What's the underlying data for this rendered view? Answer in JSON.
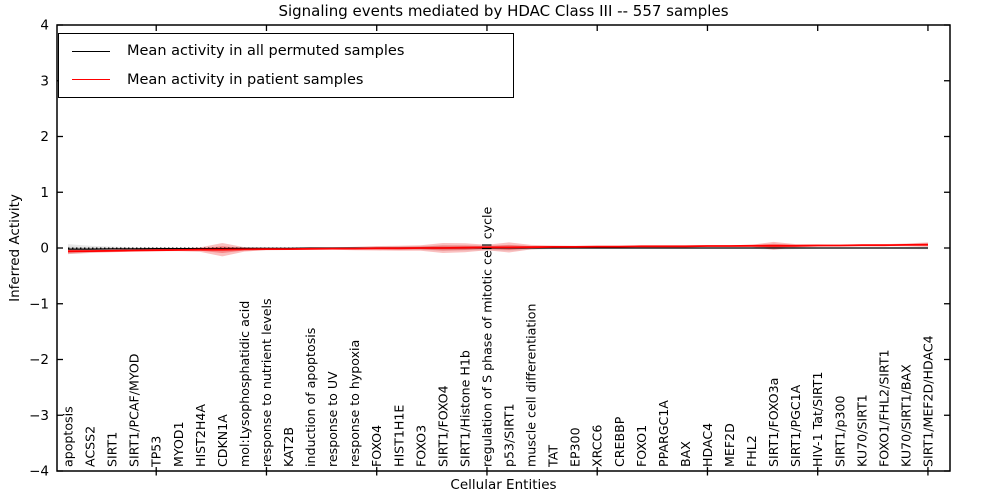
{
  "chart_data": {
    "type": "line",
    "title": "Signaling events mediated by HDAC Class III -- 557 samples",
    "xlabel": "Cellular Entities",
    "ylabel": "Inferred Activity",
    "ylim": [
      -4,
      4
    ],
    "yticks": [
      -4,
      -3,
      -2,
      -1,
      0,
      1,
      2,
      3,
      4
    ],
    "xticks_every": 5,
    "grid": false,
    "legend_position": "upper left",
    "categories": [
      "apoptosis",
      "ACSS2",
      "SIRT1",
      "SIRT1/PCAF/MYOD",
      "TP53",
      "MYOD1",
      "HIST2H4A",
      "CDKN1A",
      "mol:Lysophosphatidic acid",
      "response to nutrient levels",
      "KAT2B",
      "induction of apoptosis",
      "response to UV",
      "response to hypoxia",
      "FOXO4",
      "HIST1H1E",
      "FOXO3",
      "SIRT1/FOXO4",
      "SIRT1/Histone H1b",
      "regulation of S phase of mitotic cell cycle",
      "p53/SIRT1",
      "muscle cell differentiation",
      "TAT",
      "EP300",
      "XRCC6",
      "CREBBP",
      "FOXO1",
      "PPARGC1A",
      "BAX",
      "HDAC4",
      "MEF2D",
      "FHL2",
      "SIRT1/FOXO3a",
      "SIRT1/PGC1A",
      "HIV-1 Tat/SIRT1",
      "SIRT1/p300",
      "KU70/SIRT1",
      "FOXO1/FHL2/SIRT1",
      "KU70/SIRT1/BAX",
      "SIRT1/MEF2D/HDAC4"
    ],
    "series": [
      {
        "name": "Mean activity in all permuted samples",
        "color": "#000000",
        "values": [
          -0.02,
          -0.02,
          -0.015,
          -0.015,
          -0.01,
          -0.01,
          -0.01,
          -0.01,
          -0.005,
          -0.005,
          -0.005,
          0,
          0,
          0,
          0,
          0,
          0,
          0,
          0,
          0,
          0,
          0,
          0,
          0,
          0,
          0,
          0,
          0,
          0,
          0,
          0,
          0,
          0,
          0,
          0,
          0,
          0,
          0,
          0,
          0
        ]
      },
      {
        "name": "Mean activity in patient samples",
        "color": "#ff0000",
        "values": [
          -0.06,
          -0.055,
          -0.05,
          -0.045,
          -0.04,
          -0.035,
          -0.03,
          -0.03,
          -0.025,
          -0.02,
          -0.02,
          -0.015,
          -0.01,
          -0.01,
          -0.005,
          -0.005,
          0,
          0,
          0.005,
          0.01,
          0.01,
          0.015,
          0.02,
          0.02,
          0.025,
          0.025,
          0.03,
          0.03,
          0.03,
          0.035,
          0.035,
          0.04,
          0.04,
          0.04,
          0.045,
          0.045,
          0.05,
          0.05,
          0.055,
          0.06
        ]
      }
    ],
    "bands": [
      {
        "name": "permuted samples distribution",
        "color": "#b3b3b3",
        "center_series": 0,
        "half_widths": [
          0.09,
          0.06,
          0.04,
          0.03,
          0.025,
          0.02,
          0.02,
          0.03,
          0.02,
          0.02,
          0.015,
          0.015,
          0.015,
          0.02,
          0.025,
          0.03,
          0.035,
          0.05,
          0.045,
          0.04,
          0.05,
          0.03,
          0.02,
          0.015,
          0.015,
          0.015,
          0.015,
          0.015,
          0.015,
          0.015,
          0.015,
          0.015,
          0.03,
          0.02,
          0.015,
          0.015,
          0.015,
          0.015,
          0.02,
          0.025
        ]
      },
      {
        "name": "patient samples distribution",
        "color": "#f03030",
        "center_series": 1,
        "half_widths": [
          0.05,
          0.035,
          0.025,
          0.02,
          0.02,
          0.02,
          0.04,
          0.12,
          0.04,
          0.02,
          0.015,
          0.015,
          0.02,
          0.03,
          0.04,
          0.045,
          0.05,
          0.09,
          0.08,
          0.05,
          0.09,
          0.04,
          0.025,
          0.02,
          0.015,
          0.015,
          0.015,
          0.015,
          0.015,
          0.015,
          0.015,
          0.02,
          0.07,
          0.03,
          0.02,
          0.015,
          0.015,
          0.02,
          0.025,
          0.04
        ]
      }
    ],
    "zero_line": {
      "style": "dotted",
      "color": "#000000",
      "y": 0
    }
  }
}
